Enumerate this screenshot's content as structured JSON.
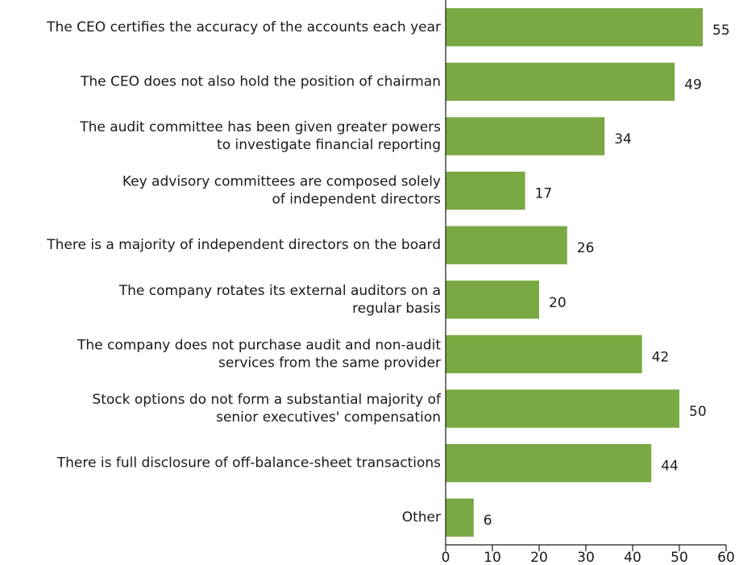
{
  "chart_data": {
    "type": "bar",
    "orientation": "horizontal",
    "categories": [
      [
        "The CEO certifies the accuracy of the accounts each year"
      ],
      [
        "The CEO does not also hold the position of chairman"
      ],
      [
        "The audit committee has been given greater powers",
        "to investigate financial reporting"
      ],
      [
        "Key advisory committees are composed solely",
        "of independent directors"
      ],
      [
        "There is a majority of independent directors on the board"
      ],
      [
        "The company rotates its external auditors on a",
        "regular basis"
      ],
      [
        "The company does not purchase audit and non-audit",
        "services from the same provider"
      ],
      [
        "Stock options do not form a substantial majority of",
        "senior executives' compensation"
      ],
      [
        "There is full disclosure of off-balance-sheet transactions"
      ],
      [
        "Other"
      ]
    ],
    "values": [
      55,
      49,
      34,
      17,
      26,
      20,
      42,
      50,
      44,
      6
    ],
    "color": "#7aa843",
    "xlim": [
      0,
      60
    ],
    "xticks": [
      0,
      10,
      20,
      30,
      40,
      50,
      60
    ]
  }
}
